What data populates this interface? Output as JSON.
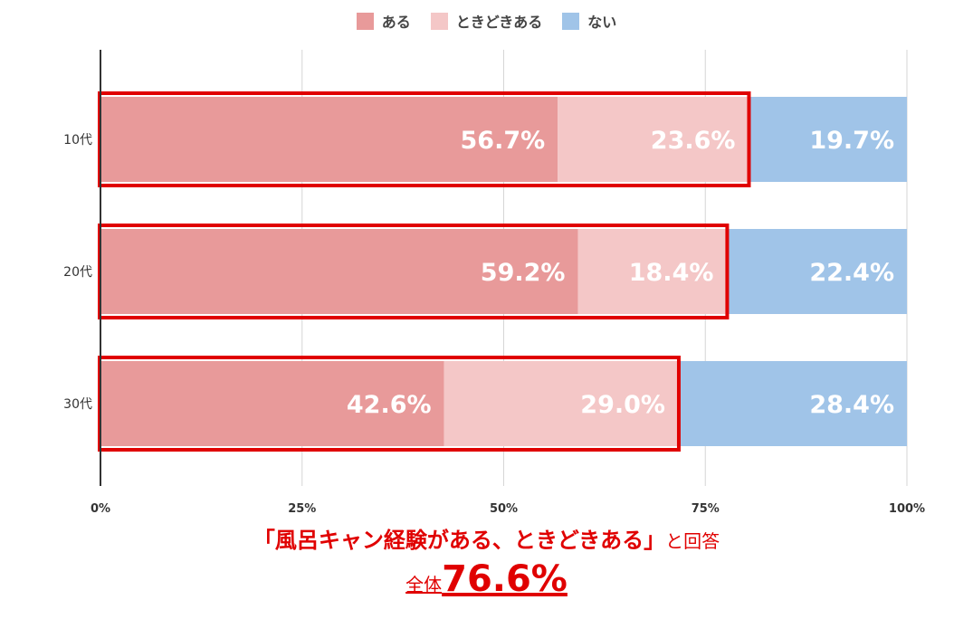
{
  "chart_data": {
    "type": "bar",
    "orientation": "horizontal",
    "stacked": true,
    "categories": [
      "10代",
      "20代",
      "30代"
    ],
    "series": [
      {
        "name": "ある",
        "values": [
          56.7,
          59.2,
          42.6
        ],
        "color": "#e89a9a"
      },
      {
        "name": "ときどきある",
        "values": [
          23.6,
          18.4,
          29.0
        ],
        "color": "#f4c7c7"
      },
      {
        "name": "ない",
        "values": [
          19.7,
          22.4,
          28.4
        ],
        "color": "#a0c4e8"
      }
    ],
    "value_labels": [
      [
        "56.7%",
        "23.6%",
        "19.7%"
      ],
      [
        "59.2%",
        "18.4%",
        "22.4%"
      ],
      [
        "42.6%",
        "29.0%",
        "28.4%"
      ]
    ],
    "xlim": [
      0,
      100
    ],
    "xticks": [
      0,
      25,
      50,
      75,
      100
    ],
    "xtick_labels": [
      "0%",
      "25%",
      "50%",
      "75%",
      "100%"
    ],
    "grid": "vertical",
    "legend": "top-center",
    "highlight": {
      "series": [
        "ある",
        "ときどきある"
      ],
      "color": "#e00000"
    }
  },
  "caption": {
    "main": "「風呂キャン経験がある、ときどきある」",
    "suffix": "と回答",
    "total_label": "全体",
    "total_value": "76.6%"
  }
}
